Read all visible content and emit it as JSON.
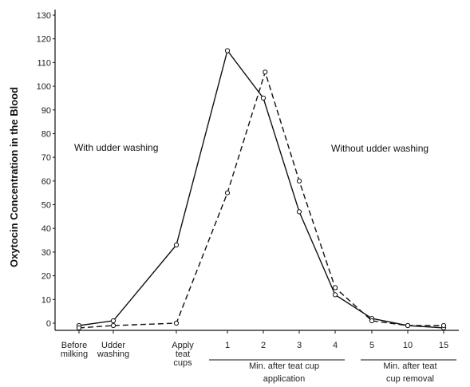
{
  "chart_data": {
    "type": "line",
    "title": "",
    "xlabel": "",
    "ylabel": "Oxytocin Concentration in the Blood",
    "ylim": [
      0,
      130
    ],
    "yticks": [
      "0",
      "10",
      "20",
      "30",
      "40",
      "50",
      "60",
      "70",
      "80",
      "90",
      "100",
      "110",
      "120",
      "130"
    ],
    "categories": [
      {
        "lines": [
          "Before",
          "milking"
        ]
      },
      {
        "lines": [
          "Udder",
          "washing"
        ]
      },
      {
        "lines": [
          "Apply",
          "teat",
          "cups"
        ]
      },
      {
        "lines": [
          "1"
        ]
      },
      {
        "lines": [
          "2"
        ]
      },
      {
        "lines": [
          "3"
        ]
      },
      {
        "lines": [
          "4"
        ]
      },
      {
        "lines": [
          "5"
        ]
      },
      {
        "lines": [
          "10"
        ]
      },
      {
        "lines": [
          "15"
        ]
      }
    ],
    "groups": [
      {
        "lines": [
          "Min. after teat cup",
          "application"
        ]
      },
      {
        "lines": [
          "Min. after teat",
          "cup removal"
        ]
      }
    ],
    "series": [
      {
        "name": "With udder washing",
        "style": "solid",
        "points": [
          {
            "x": 0,
            "y": -1
          },
          {
            "x": 1,
            "y": 1
          },
          {
            "x": 2,
            "y": 33
          },
          {
            "x": 3,
            "y": 115
          },
          {
            "x": 4,
            "y": 95
          },
          {
            "x": 5,
            "y": 47
          },
          {
            "x": 6,
            "y": 12
          },
          {
            "x": 7,
            "y": 2
          },
          {
            "x": 8,
            "y": -1
          },
          {
            "x": 9,
            "y": -2
          }
        ]
      },
      {
        "name": "Without udder washing",
        "style": "dashed",
        "points": [
          {
            "x": 0,
            "y": -2
          },
          {
            "x": 1,
            "y": -1
          },
          {
            "x": 2,
            "y": 0
          },
          {
            "x": 3,
            "y": 55
          },
          {
            "x": 4.05,
            "y": 106
          },
          {
            "x": 5,
            "y": 60
          },
          {
            "x": 6,
            "y": 15
          },
          {
            "x": 7,
            "y": 1
          },
          {
            "x": 8,
            "y": -1
          },
          {
            "x": 9,
            "y": -1
          }
        ]
      }
    ],
    "annotations": [
      {
        "text": "With udder washing",
        "series": 0
      },
      {
        "text": "Without udder washing",
        "series": 1
      }
    ],
    "grid": false,
    "line_color": "#111111"
  }
}
